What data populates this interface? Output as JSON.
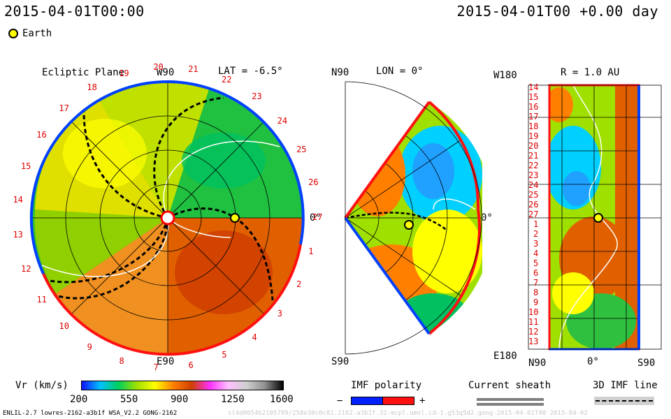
{
  "header": {
    "datetime_left": "2015-04-01T00:00",
    "datetime_right": "2015-04-01T00 +0.00 day"
  },
  "legend": {
    "earth_label": "Earth"
  },
  "ecliptic": {
    "title": "Ecliptic Plane",
    "lat_label": "LAT = -6.5°",
    "top_label": "W90",
    "bottom_label": "E90",
    "right_label": "0°",
    "ticks": [
      "1",
      "2",
      "3",
      "4",
      "5",
      "6",
      "7",
      "8",
      "9",
      "10",
      "11",
      "12",
      "13",
      "14",
      "15",
      "16",
      "17",
      "18",
      "19",
      "20",
      "21",
      "22",
      "23",
      "24",
      "25",
      "26",
      "27"
    ]
  },
  "meridional": {
    "lon_label": "LON = 0°",
    "top_label": "N90",
    "bottom_label": "S90",
    "right_label": "0°"
  },
  "lonlat": {
    "title": "R = 1.0 AU",
    "top_label": "W180",
    "bottom_label": "E180",
    "x_left": "N90",
    "x_mid": "0°",
    "x_right": "S90",
    "rows": [
      "14",
      "15",
      "16",
      "17",
      "18",
      "19",
      "20",
      "21",
      "22",
      "23",
      "24",
      "25",
      "26",
      "27",
      "1",
      "2",
      "3",
      "4",
      "5",
      "6",
      "7",
      "8",
      "9",
      "10",
      "11",
      "12",
      "13"
    ]
  },
  "colorbar": {
    "label": "Vr (km/s)",
    "ticks": [
      "200",
      "550",
      "900",
      "1250",
      "1600"
    ],
    "stops": [
      "#1010ff",
      "#00c0ff",
      "#00d060",
      "#a0e000",
      "#ffff00",
      "#ff8000",
      "#d04000",
      "#ff30ff",
      "#ffc0ff",
      "#d0d0d0",
      "#909090",
      "#000000"
    ]
  },
  "imf": {
    "label": "IMF polarity",
    "minus": "−",
    "plus": "+"
  },
  "sheath": {
    "label": "Current sheath"
  },
  "imf3d": {
    "label": "3D IMF line"
  },
  "footer": {
    "left": "ENLIL-2.7 lowres-2162-a3b1f WSA_V2.2 GONG-2162",
    "right": "sl4d0054b2105789/258e30c0c81.2162-a3b1f.32-mcpl.umnl.cd-1.g53q5d2.gong-2015-04-01T00   2015-04-02"
  }
}
